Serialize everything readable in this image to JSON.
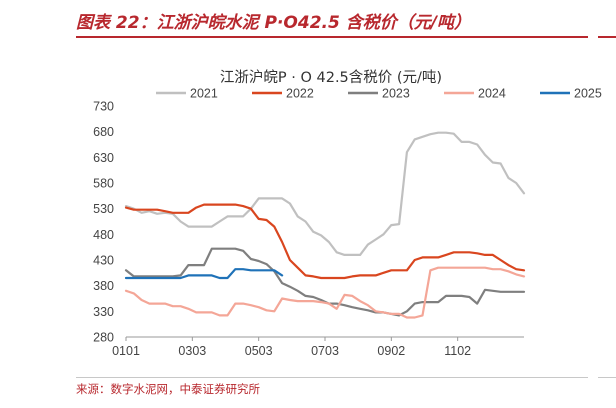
{
  "figure": {
    "title": "图表 22：江浙沪皖水泥 P·O42.5 含税价（元/吨）",
    "source": "来源：数字水泥网，中泰证券研究所"
  },
  "chart_data": {
    "type": "line",
    "title": "江浙沪皖P · O 42.5含税价 (元/吨)",
    "xlabel": "",
    "ylabel": "",
    "ylim": [
      280,
      730
    ],
    "yticks": [
      280,
      330,
      380,
      430,
      480,
      530,
      580,
      630,
      680,
      730
    ],
    "x_range": [
      1,
      52
    ],
    "xtick_labels": [
      {
        "label": "0101",
        "week": 1
      },
      {
        "label": "0303",
        "week": 9.5
      },
      {
        "label": "0503",
        "week": 18
      },
      {
        "label": "0703",
        "week": 26.5
      },
      {
        "label": "0902",
        "week": 35
      },
      {
        "label": "1102",
        "week": 43.5
      }
    ],
    "grid": false,
    "legend_position": "top",
    "series": [
      {
        "name": "2021",
        "color": "#c0c0c0",
        "points": [
          [
            1,
            535
          ],
          [
            2,
            530
          ],
          [
            3,
            522
          ],
          [
            4,
            525
          ],
          [
            5,
            520
          ],
          [
            6,
            522
          ],
          [
            7,
            520
          ],
          [
            8,
            505
          ],
          [
            9,
            495
          ],
          [
            10,
            495
          ],
          [
            11,
            495
          ],
          [
            12,
            495
          ],
          [
            13,
            505
          ],
          [
            14,
            515
          ],
          [
            15,
            515
          ],
          [
            16,
            515
          ],
          [
            17,
            530
          ],
          [
            18,
            550
          ],
          [
            19,
            550
          ],
          [
            20,
            550
          ],
          [
            21,
            550
          ],
          [
            22,
            540
          ],
          [
            23,
            515
          ],
          [
            24,
            505
          ],
          [
            25,
            485
          ],
          [
            26,
            478
          ],
          [
            27,
            465
          ],
          [
            28,
            445
          ],
          [
            29,
            440
          ],
          [
            30,
            440
          ],
          [
            31,
            440
          ],
          [
            32,
            460
          ],
          [
            33,
            470
          ],
          [
            34,
            480
          ],
          [
            35,
            498
          ],
          [
            36,
            500
          ],
          [
            37,
            640
          ],
          [
            38,
            665
          ],
          [
            39,
            670
          ],
          [
            40,
            675
          ],
          [
            41,
            678
          ],
          [
            42,
            678
          ],
          [
            43,
            676
          ],
          [
            44,
            660
          ],
          [
            45,
            660
          ],
          [
            46,
            655
          ],
          [
            47,
            635
          ],
          [
            48,
            620
          ],
          [
            49,
            618
          ],
          [
            50,
            590
          ],
          [
            51,
            580
          ],
          [
            52,
            560
          ]
        ]
      },
      {
        "name": "2022",
        "color": "#d9461f",
        "points": [
          [
            1,
            532
          ],
          [
            2,
            528
          ],
          [
            3,
            528
          ],
          [
            4,
            528
          ],
          [
            5,
            528
          ],
          [
            6,
            525
          ],
          [
            7,
            522
          ],
          [
            8,
            522
          ],
          [
            9,
            522
          ],
          [
            10,
            532
          ],
          [
            11,
            538
          ],
          [
            12,
            538
          ],
          [
            13,
            538
          ],
          [
            14,
            538
          ],
          [
            15,
            538
          ],
          [
            16,
            535
          ],
          [
            17,
            530
          ],
          [
            18,
            510
          ],
          [
            19,
            508
          ],
          [
            20,
            495
          ],
          [
            21,
            465
          ],
          [
            22,
            430
          ],
          [
            23,
            415
          ],
          [
            24,
            400
          ],
          [
            25,
            398
          ],
          [
            26,
            395
          ],
          [
            27,
            395
          ],
          [
            28,
            395
          ],
          [
            29,
            395
          ],
          [
            30,
            398
          ],
          [
            31,
            400
          ],
          [
            32,
            400
          ],
          [
            33,
            400
          ],
          [
            34,
            405
          ],
          [
            35,
            410
          ],
          [
            36,
            410
          ],
          [
            37,
            410
          ],
          [
            38,
            430
          ],
          [
            39,
            435
          ],
          [
            40,
            435
          ],
          [
            41,
            435
          ],
          [
            42,
            440
          ],
          [
            43,
            445
          ],
          [
            44,
            445
          ],
          [
            45,
            445
          ],
          [
            46,
            443
          ],
          [
            47,
            440
          ],
          [
            48,
            440
          ],
          [
            49,
            430
          ],
          [
            50,
            420
          ],
          [
            51,
            412
          ],
          [
            52,
            410
          ]
        ]
      },
      {
        "name": "2023",
        "color": "#7f7f7f",
        "points": [
          [
            1,
            410
          ],
          [
            2,
            398
          ],
          [
            3,
            398
          ],
          [
            4,
            398
          ],
          [
            5,
            398
          ],
          [
            6,
            398
          ],
          [
            7,
            398
          ],
          [
            8,
            400
          ],
          [
            9,
            420
          ],
          [
            10,
            420
          ],
          [
            11,
            420
          ],
          [
            12,
            452
          ],
          [
            13,
            452
          ],
          [
            14,
            452
          ],
          [
            15,
            452
          ],
          [
            16,
            448
          ],
          [
            17,
            432
          ],
          [
            18,
            428
          ],
          [
            19,
            422
          ],
          [
            20,
            408
          ],
          [
            21,
            385
          ],
          [
            22,
            378
          ],
          [
            23,
            370
          ],
          [
            24,
            360
          ],
          [
            25,
            358
          ],
          [
            26,
            352
          ],
          [
            27,
            345
          ],
          [
            28,
            345
          ],
          [
            29,
            342
          ],
          [
            30,
            338
          ],
          [
            31,
            335
          ],
          [
            32,
            332
          ],
          [
            33,
            328
          ],
          [
            34,
            328
          ],
          [
            35,
            325
          ],
          [
            36,
            322
          ],
          [
            37,
            330
          ],
          [
            38,
            345
          ],
          [
            39,
            348
          ],
          [
            40,
            348
          ],
          [
            41,
            348
          ],
          [
            42,
            360
          ],
          [
            43,
            360
          ],
          [
            44,
            360
          ],
          [
            45,
            358
          ],
          [
            46,
            345
          ],
          [
            47,
            372
          ],
          [
            48,
            370
          ],
          [
            49,
            368
          ],
          [
            50,
            368
          ],
          [
            51,
            368
          ],
          [
            52,
            368
          ]
        ]
      },
      {
        "name": "2024",
        "color": "#f4a697",
        "points": [
          [
            1,
            370
          ],
          [
            2,
            365
          ],
          [
            3,
            352
          ],
          [
            4,
            345
          ],
          [
            5,
            345
          ],
          [
            6,
            345
          ],
          [
            7,
            340
          ],
          [
            8,
            340
          ],
          [
            9,
            335
          ],
          [
            10,
            328
          ],
          [
            11,
            328
          ],
          [
            12,
            328
          ],
          [
            13,
            322
          ],
          [
            14,
            322
          ],
          [
            15,
            345
          ],
          [
            16,
            345
          ],
          [
            17,
            342
          ],
          [
            18,
            338
          ],
          [
            19,
            332
          ],
          [
            20,
            330
          ],
          [
            21,
            355
          ],
          [
            22,
            352
          ],
          [
            23,
            350
          ],
          [
            24,
            350
          ],
          [
            25,
            350
          ],
          [
            26,
            348
          ],
          [
            27,
            345
          ],
          [
            28,
            335
          ],
          [
            29,
            362
          ],
          [
            30,
            360
          ],
          [
            31,
            350
          ],
          [
            32,
            342
          ],
          [
            33,
            330
          ],
          [
            34,
            328
          ],
          [
            35,
            325
          ],
          [
            36,
            325
          ],
          [
            37,
            318
          ],
          [
            38,
            318
          ],
          [
            39,
            322
          ],
          [
            40,
            410
          ],
          [
            41,
            415
          ],
          [
            42,
            415
          ],
          [
            43,
            415
          ],
          [
            44,
            415
          ],
          [
            45,
            415
          ],
          [
            46,
            415
          ],
          [
            47,
            415
          ],
          [
            48,
            412
          ],
          [
            49,
            412
          ],
          [
            50,
            408
          ],
          [
            51,
            402
          ],
          [
            52,
            398
          ]
        ]
      },
      {
        "name": "2025",
        "color": "#1f72b8",
        "points": [
          [
            1,
            395
          ],
          [
            2,
            395
          ],
          [
            3,
            395
          ],
          [
            4,
            395
          ],
          [
            5,
            395
          ],
          [
            6,
            395
          ],
          [
            7,
            395
          ],
          [
            8,
            395
          ],
          [
            9,
            400
          ],
          [
            10,
            400
          ],
          [
            11,
            400
          ],
          [
            12,
            400
          ],
          [
            13,
            395
          ],
          [
            14,
            395
          ],
          [
            15,
            412
          ],
          [
            16,
            412
          ],
          [
            17,
            410
          ],
          [
            18,
            410
          ],
          [
            19,
            410
          ],
          [
            20,
            410
          ],
          [
            21,
            400
          ]
        ]
      }
    ]
  }
}
